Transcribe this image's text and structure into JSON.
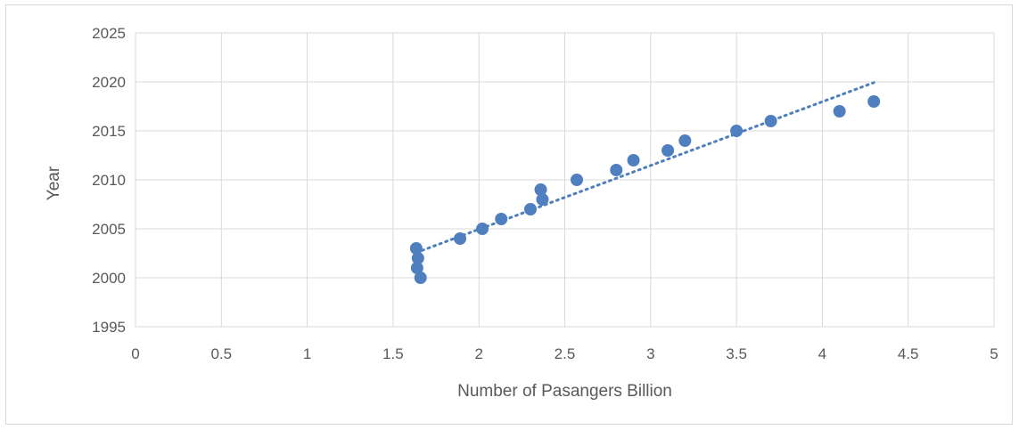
{
  "chart_data": {
    "type": "scatter",
    "title": "",
    "xlabel": "Number of Pasangers Billion",
    "ylabel": "Year",
    "xlim": [
      0,
      5
    ],
    "ylim": [
      1995,
      2025
    ],
    "x_ticks": [
      "0",
      "0.5",
      "1",
      "1.5",
      "2",
      "2.5",
      "3",
      "3.5",
      "4",
      "4.5",
      "5"
    ],
    "y_ticks": [
      "1995",
      "2000",
      "2005",
      "2010",
      "2015",
      "2020",
      "2025"
    ],
    "grid": true,
    "legend": "none",
    "marker_color": "#4f7fbf",
    "trendline_color": "#4f7fbf",
    "series": [
      {
        "points": [
          {
            "x": 1.66,
            "y": 2000
          },
          {
            "x": 1.64,
            "y": 2001
          },
          {
            "x": 1.645,
            "y": 2002
          },
          {
            "x": 1.635,
            "y": 2003
          },
          {
            "x": 1.89,
            "y": 2004
          },
          {
            "x": 2.02,
            "y": 2005
          },
          {
            "x": 2.13,
            "y": 2006
          },
          {
            "x": 2.3,
            "y": 2007
          },
          {
            "x": 2.37,
            "y": 2008
          },
          {
            "x": 2.36,
            "y": 2009
          },
          {
            "x": 2.57,
            "y": 2010
          },
          {
            "x": 2.8,
            "y": 2011
          },
          {
            "x": 2.9,
            "y": 2012
          },
          {
            "x": 3.1,
            "y": 2013
          },
          {
            "x": 3.2,
            "y": 2014
          },
          {
            "x": 3.5,
            "y": 2015
          },
          {
            "x": 3.7,
            "y": 2016
          },
          {
            "x": 4.1,
            "y": 2017
          },
          {
            "x": 4.3,
            "y": 2018
          }
        ]
      }
    ],
    "trendline": {
      "type": "linear",
      "style": "dotted",
      "x_start": 1.635,
      "x_end": 4.3
    }
  }
}
